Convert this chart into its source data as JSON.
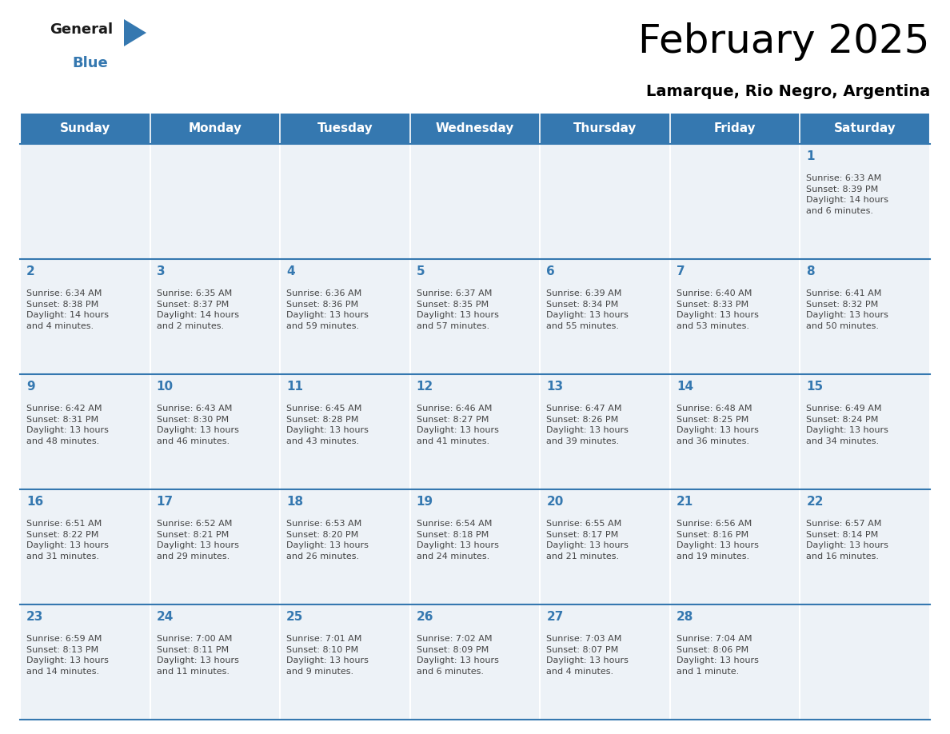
{
  "title": "February 2025",
  "subtitle": "Lamarque, Rio Negro, Argentina",
  "header_color": "#3578b0",
  "header_text_color": "#ffffff",
  "cell_bg": "#edf2f7",
  "day_headers": [
    "Sunday",
    "Monday",
    "Tuesday",
    "Wednesday",
    "Thursday",
    "Friday",
    "Saturday"
  ],
  "logo_general_color": "#1a1a1a",
  "logo_blue_color": "#3578b0",
  "logo_triangle_color": "#3578b0",
  "day_number_color": "#3578b0",
  "info_text_color": "#444444",
  "separator_color": "#3578b0",
  "title_fontsize": 36,
  "subtitle_fontsize": 14,
  "header_fontsize": 11,
  "day_num_fontsize": 11,
  "info_fontsize": 8.0,
  "weeks": [
    [
      {
        "day": "",
        "info": ""
      },
      {
        "day": "",
        "info": ""
      },
      {
        "day": "",
        "info": ""
      },
      {
        "day": "",
        "info": ""
      },
      {
        "day": "",
        "info": ""
      },
      {
        "day": "",
        "info": ""
      },
      {
        "day": "1",
        "info": "Sunrise: 6:33 AM\nSunset: 8:39 PM\nDaylight: 14 hours\nand 6 minutes."
      }
    ],
    [
      {
        "day": "2",
        "info": "Sunrise: 6:34 AM\nSunset: 8:38 PM\nDaylight: 14 hours\nand 4 minutes."
      },
      {
        "day": "3",
        "info": "Sunrise: 6:35 AM\nSunset: 8:37 PM\nDaylight: 14 hours\nand 2 minutes."
      },
      {
        "day": "4",
        "info": "Sunrise: 6:36 AM\nSunset: 8:36 PM\nDaylight: 13 hours\nand 59 minutes."
      },
      {
        "day": "5",
        "info": "Sunrise: 6:37 AM\nSunset: 8:35 PM\nDaylight: 13 hours\nand 57 minutes."
      },
      {
        "day": "6",
        "info": "Sunrise: 6:39 AM\nSunset: 8:34 PM\nDaylight: 13 hours\nand 55 minutes."
      },
      {
        "day": "7",
        "info": "Sunrise: 6:40 AM\nSunset: 8:33 PM\nDaylight: 13 hours\nand 53 minutes."
      },
      {
        "day": "8",
        "info": "Sunrise: 6:41 AM\nSunset: 8:32 PM\nDaylight: 13 hours\nand 50 minutes."
      }
    ],
    [
      {
        "day": "9",
        "info": "Sunrise: 6:42 AM\nSunset: 8:31 PM\nDaylight: 13 hours\nand 48 minutes."
      },
      {
        "day": "10",
        "info": "Sunrise: 6:43 AM\nSunset: 8:30 PM\nDaylight: 13 hours\nand 46 minutes."
      },
      {
        "day": "11",
        "info": "Sunrise: 6:45 AM\nSunset: 8:28 PM\nDaylight: 13 hours\nand 43 minutes."
      },
      {
        "day": "12",
        "info": "Sunrise: 6:46 AM\nSunset: 8:27 PM\nDaylight: 13 hours\nand 41 minutes."
      },
      {
        "day": "13",
        "info": "Sunrise: 6:47 AM\nSunset: 8:26 PM\nDaylight: 13 hours\nand 39 minutes."
      },
      {
        "day": "14",
        "info": "Sunrise: 6:48 AM\nSunset: 8:25 PM\nDaylight: 13 hours\nand 36 minutes."
      },
      {
        "day": "15",
        "info": "Sunrise: 6:49 AM\nSunset: 8:24 PM\nDaylight: 13 hours\nand 34 minutes."
      }
    ],
    [
      {
        "day": "16",
        "info": "Sunrise: 6:51 AM\nSunset: 8:22 PM\nDaylight: 13 hours\nand 31 minutes."
      },
      {
        "day": "17",
        "info": "Sunrise: 6:52 AM\nSunset: 8:21 PM\nDaylight: 13 hours\nand 29 minutes."
      },
      {
        "day": "18",
        "info": "Sunrise: 6:53 AM\nSunset: 8:20 PM\nDaylight: 13 hours\nand 26 minutes."
      },
      {
        "day": "19",
        "info": "Sunrise: 6:54 AM\nSunset: 8:18 PM\nDaylight: 13 hours\nand 24 minutes."
      },
      {
        "day": "20",
        "info": "Sunrise: 6:55 AM\nSunset: 8:17 PM\nDaylight: 13 hours\nand 21 minutes."
      },
      {
        "day": "21",
        "info": "Sunrise: 6:56 AM\nSunset: 8:16 PM\nDaylight: 13 hours\nand 19 minutes."
      },
      {
        "day": "22",
        "info": "Sunrise: 6:57 AM\nSunset: 8:14 PM\nDaylight: 13 hours\nand 16 minutes."
      }
    ],
    [
      {
        "day": "23",
        "info": "Sunrise: 6:59 AM\nSunset: 8:13 PM\nDaylight: 13 hours\nand 14 minutes."
      },
      {
        "day": "24",
        "info": "Sunrise: 7:00 AM\nSunset: 8:11 PM\nDaylight: 13 hours\nand 11 minutes."
      },
      {
        "day": "25",
        "info": "Sunrise: 7:01 AM\nSunset: 8:10 PM\nDaylight: 13 hours\nand 9 minutes."
      },
      {
        "day": "26",
        "info": "Sunrise: 7:02 AM\nSunset: 8:09 PM\nDaylight: 13 hours\nand 6 minutes."
      },
      {
        "day": "27",
        "info": "Sunrise: 7:03 AM\nSunset: 8:07 PM\nDaylight: 13 hours\nand 4 minutes."
      },
      {
        "day": "28",
        "info": "Sunrise: 7:04 AM\nSunset: 8:06 PM\nDaylight: 13 hours\nand 1 minute."
      },
      {
        "day": "",
        "info": ""
      }
    ]
  ]
}
